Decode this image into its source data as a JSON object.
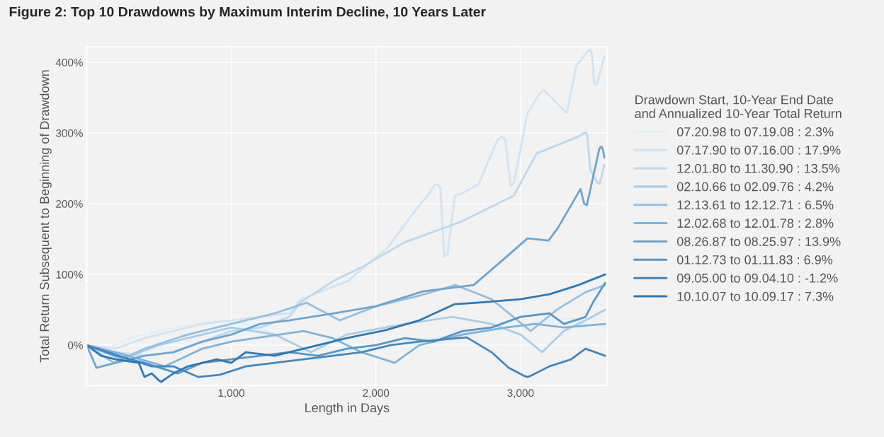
{
  "chart_data": {
    "type": "line",
    "title": "Figure 2: Top 10 Drawdowns by Maximum Interim Decline, 10 Years Later",
    "xlabel": "Length in Days",
    "ylabel": "Total Return Subsequent to Beginning of Drawdown",
    "legend_title": "Drawdown Start, 10-Year End Date\nand Annualized 10-Year Total Return",
    "xlim": [
      0,
      3600
    ],
    "ylim": [
      -57,
      422
    ],
    "xticks": [
      {
        "value": 1000,
        "label": "1,000"
      },
      {
        "value": 2000,
        "label": "2,000"
      },
      {
        "value": 3000,
        "label": "3,000"
      }
    ],
    "yticks": [
      {
        "value": 0,
        "label": "0%"
      },
      {
        "value": 100,
        "label": "100%"
      },
      {
        "value": 200,
        "label": "200%"
      },
      {
        "value": 300,
        "label": "300%"
      },
      {
        "value": 400,
        "label": "400%"
      }
    ],
    "grid": true,
    "legend": "right",
    "line_style": "solid",
    "marker": "none",
    "series": [
      {
        "name": "07.20.98 to 07.19.08 : 2.3%",
        "color": "#e3eef9",
        "x": [
          0,
          150,
          300,
          500,
          700,
          900,
          1100,
          1300,
          1450,
          1550,
          1700,
          1900,
          2100,
          2400,
          2700,
          3000,
          3200,
          3350,
          3450,
          3585
        ],
        "values": [
          0,
          -5,
          10,
          20,
          28,
          35,
          30,
          15,
          0,
          -20,
          -10,
          -5,
          5,
          10,
          20,
          28,
          35,
          38,
          30,
          27
        ]
      },
      {
        "name": "07.17.90 to 07.16.00 : 17.9%",
        "color": "#d0e4f4",
        "x": [
          0,
          200,
          400,
          600,
          800,
          1000,
          1200,
          1400,
          1483,
          1807,
          2082,
          2275,
          2370,
          2400,
          2420,
          2445,
          2473,
          2495,
          2546,
          2600,
          2710,
          2840,
          2870,
          2895,
          2932,
          2955,
          3048,
          3130,
          3159,
          3190,
          3319,
          3386,
          3460,
          3483,
          3495,
          3510,
          3525,
          3580
        ],
        "values": [
          0,
          -5,
          10,
          20,
          30,
          35,
          40,
          45,
          65,
          91,
          138,
          191,
          215,
          225,
          228,
          224,
          125,
          128,
          211,
          215,
          228,
          290,
          295,
          290,
          225,
          230,
          328,
          355,
          361,
          355,
          328,
          395,
          415,
          418,
          410,
          370,
          368,
          408
        ]
      },
      {
        "name": "12.01.80 to 11.30.90 : 13.5%",
        "color": "#bcd8ee",
        "x": [
          0,
          200,
          400,
          600,
          800,
          1000,
          1200,
          1400,
          1483,
          1700,
          1900,
          2193,
          2594,
          2952,
          3111,
          3401,
          3440,
          3449,
          3460,
          3483,
          3530,
          3546,
          3580
        ],
        "values": [
          0,
          -10,
          -15,
          -10,
          5,
          20,
          25,
          40,
          61,
          90,
          110,
          145,
          175,
          211,
          271,
          295,
          300,
          301,
          298,
          248,
          230,
          228,
          255
        ]
      },
      {
        "name": "02.10.66 to 02.09.76 : 4.2%",
        "color": "#a9cde8",
        "x": [
          0,
          240,
          500,
          700,
          1000,
          1300,
          1550,
          1800,
          2200,
          2530,
          2800,
          3000,
          3150,
          3300,
          3450,
          3585
        ],
        "values": [
          0,
          -20,
          0,
          10,
          25,
          15,
          -10,
          15,
          30,
          40,
          30,
          15,
          -10,
          20,
          35,
          50
        ]
      },
      {
        "name": "12.13.61 to 12.12.71 : 6.5%",
        "color": "#95c0e1",
        "x": [
          0,
          190,
          400,
          700,
          1000,
          1300,
          1520,
          1750,
          2000,
          2300,
          2550,
          2800,
          3070,
          3250,
          3450,
          3585
        ],
        "values": [
          0,
          -25,
          -5,
          15,
          30,
          45,
          60,
          35,
          55,
          70,
          85,
          65,
          20,
          50,
          75,
          85
        ]
      },
      {
        "name": "12.02.68 to 12.01.78 : 2.8%",
        "color": "#80b3da",
        "x": [
          0,
          200,
          540,
          800,
          1000,
          1500,
          1700,
          1900,
          2130,
          2300,
          2600,
          2900,
          3100,
          3300,
          3585
        ],
        "values": [
          0,
          -10,
          -30,
          -5,
          5,
          20,
          10,
          -10,
          -25,
          0,
          15,
          25,
          30,
          25,
          30
        ]
      },
      {
        "name": "08.26.87 to 08.25.97 : 13.9%",
        "color": "#6ba5d2",
        "x": [
          0,
          68,
          200,
          400,
          600,
          800,
          1000,
          1200,
          1400,
          1710,
          2000,
          2324,
          2676,
          2903,
          3048,
          3193,
          3256,
          3415,
          3440,
          3459,
          3545,
          3560,
          3570,
          3580
        ],
        "values": [
          0,
          -32,
          -25,
          -15,
          -10,
          5,
          15,
          30,
          35,
          45,
          55,
          76,
          85,
          125,
          151,
          148,
          165,
          221,
          200,
          198,
          278,
          281,
          276,
          265
        ]
      },
      {
        "name": "01.12.73 to 01.11.83 : 6.9%",
        "color": "#5597ca",
        "x": [
          0,
          200,
          400,
          630,
          800,
          1000,
          1200,
          1400,
          1600,
          1800,
          2000,
          2200,
          2400,
          2600,
          2800,
          3000,
          3200,
          3300,
          3450,
          3500,
          3585
        ],
        "values": [
          0,
          -15,
          -25,
          -40,
          -25,
          -20,
          -15,
          -10,
          -15,
          -5,
          0,
          10,
          5,
          20,
          25,
          40,
          45,
          30,
          40,
          60,
          88
        ]
      },
      {
        "name": "09.05.00 to 09.04.10 : -1.2%",
        "color": "#3f88c1",
        "x": [
          0,
          150,
          300,
          450,
          600,
          770,
          920,
          1100,
          1300,
          1500,
          1700,
          1900,
          2100,
          2300,
          2628,
          2800,
          2918,
          3020,
          3048,
          3075,
          3200,
          3350,
          3449,
          3585
        ],
        "values": [
          0,
          -10,
          -20,
          -30,
          -30,
          -45,
          -42,
          -30,
          -25,
          -20,
          -15,
          -10,
          0,
          5,
          11,
          -10,
          -32,
          -43,
          -45,
          -43,
          -30,
          -20,
          -5,
          -15
        ]
      },
      {
        "name": "10.10.07 to 10.09.17 : 7.3%",
        "color": "#2a7ab8",
        "x": [
          0,
          100,
          200,
          360,
          400,
          450,
          500,
          517,
          535,
          600,
          700,
          900,
          1000,
          1100,
          1300,
          1500,
          1800,
          2063,
          2300,
          2546,
          2700,
          3000,
          3200,
          3400,
          3585
        ],
        "values": [
          0,
          -15,
          -20,
          -25,
          -45,
          -40,
          -50,
          -52,
          -49,
          -40,
          -30,
          -20,
          -25,
          -10,
          -15,
          -5,
          10,
          21,
          35,
          58,
          60,
          65,
          72,
          85,
          100
        ]
      }
    ]
  }
}
